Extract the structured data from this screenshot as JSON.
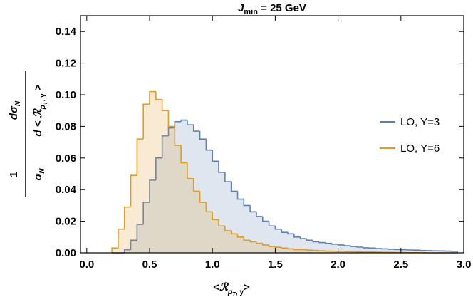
{
  "chart_data": {
    "type": "histogram",
    "title": {
      "main": "J",
      "sub": "min",
      "rest": " = 25 GeV"
    },
    "x_label": {
      "open": "<",
      "R": "ℛ",
      "sub": "p",
      "subsub": "T",
      "sub2": ", y",
      "close": ">"
    },
    "y_label": {
      "num1": "1",
      "den1": "σ",
      "den1_sub": "N",
      "num2": "dσ",
      "num2_sub": "N",
      "den2": "d < ",
      "den2_R": "ℛ",
      "den2_sub": "p",
      "den2_subsub": "T",
      "den2_sub2": ", y",
      "den2_end": " >"
    },
    "bins": [
      0.2,
      0.25,
      0.3,
      0.35,
      0.4,
      0.45,
      0.5,
      0.55,
      0.6,
      0.65,
      0.7,
      0.75,
      0.8,
      0.85,
      0.9,
      0.95,
      1.0,
      1.05,
      1.1,
      1.15,
      1.2,
      1.25,
      1.3,
      1.35,
      1.4,
      1.45,
      1.5,
      1.55,
      1.6,
      1.65,
      1.7,
      1.75,
      1.8,
      1.85,
      1.9,
      1.95,
      2.0,
      2.05,
      2.1,
      2.15,
      2.2,
      2.25,
      2.3,
      2.35,
      2.4,
      2.45,
      2.5,
      2.55,
      2.6,
      2.65,
      2.7,
      2.75,
      2.8,
      2.85,
      2.9,
      2.95
    ],
    "series": [
      {
        "name": "LO, Y=3",
        "color": "#5e81b5",
        "values": [
          0,
          0,
          0.002,
          0.008,
          0.018,
          0.032,
          0.046,
          0.06,
          0.074,
          0.079,
          0.083,
          0.084,
          0.081,
          0.077,
          0.072,
          0.065,
          0.058,
          0.051,
          0.045,
          0.039,
          0.034,
          0.03,
          0.026,
          0.023,
          0.02,
          0.017,
          0.015,
          0.013,
          0.012,
          0.01,
          0.009,
          0.008,
          0.007,
          0.0065,
          0.006,
          0.0055,
          0.005,
          0.0045,
          0.004,
          0.0036,
          0.0032,
          0.003,
          0.0027,
          0.0025,
          0.0023,
          0.0021,
          0.002,
          0.0018,
          0.0017,
          0.0015,
          0.0014,
          0.0013,
          0.0012,
          0.0011,
          0.001
        ]
      },
      {
        "name": "LO, Y=6",
        "color": "#e19c24",
        "values": [
          0.003,
          0.015,
          0.029,
          0.049,
          0.072,
          0.094,
          0.102,
          0.097,
          0.09,
          0.08,
          0.068,
          0.057,
          0.047,
          0.039,
          0.032,
          0.026,
          0.021,
          0.017,
          0.014,
          0.012,
          0.01,
          0.008,
          0.007,
          0.006,
          0.005,
          0.004,
          0.0035,
          0.003,
          0.0025,
          0.002,
          0.002,
          0.0017,
          0.0015,
          0.0013,
          0.0011,
          0.001,
          0.0009,
          0.0008,
          0.0007,
          0.0006,
          0.0005,
          0.0005,
          0.0004,
          0.0003,
          0.0003,
          0.0002,
          0.0002,
          0.0001,
          0.0001,
          0.0001,
          0,
          0,
          0,
          0,
          0
        ]
      }
    ],
    "xlim": [
      -0.05,
      3.0
    ],
    "ylim": [
      0,
      0.15
    ],
    "xticks": [
      {
        "value": 0,
        "label": "0.0"
      },
      {
        "value": 0.5,
        "label": "0.5"
      },
      {
        "value": 1,
        "label": "1.0"
      },
      {
        "value": 1.5,
        "label": "1.5"
      },
      {
        "value": 2,
        "label": "2.0"
      },
      {
        "value": 2.5,
        "label": "2.5"
      },
      {
        "value": 3,
        "label": "3.0"
      }
    ],
    "yticks": [
      {
        "value": 0,
        "label": "0.00"
      },
      {
        "value": 0.02,
        "label": "0.02"
      },
      {
        "value": 0.04,
        "label": "0.04"
      },
      {
        "value": 0.06,
        "label": "0.06"
      },
      {
        "value": 0.08,
        "label": "0.08"
      },
      {
        "value": 0.1,
        "label": "0.10"
      },
      {
        "value": 0.12,
        "label": "0.12"
      },
      {
        "value": 0.14,
        "label": "0.14"
      }
    ],
    "legend": "right"
  }
}
